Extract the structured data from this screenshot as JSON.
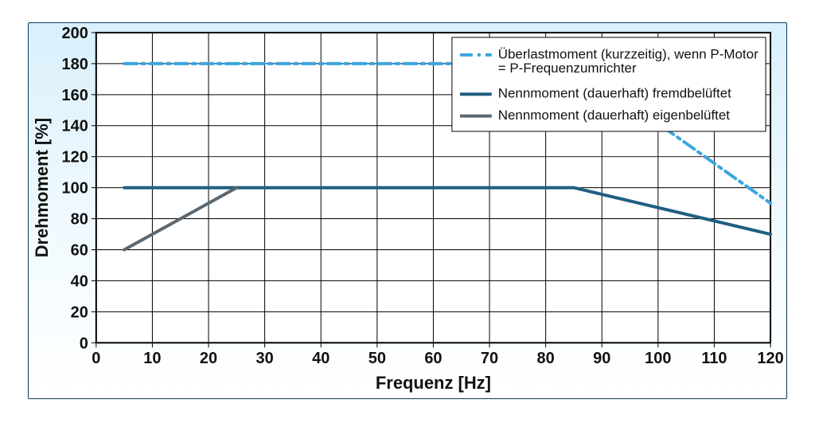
{
  "chart": {
    "type": "line",
    "background_gradient_top": "#d9f0fb",
    "background_gradient_bottom": "#ffffff",
    "border_color": "#0a3a5a",
    "xaxis": {
      "title": "Frequenz [Hz]",
      "min": 0,
      "max": 120,
      "step": 10,
      "title_fontsize": 22,
      "tick_fontsize": 20,
      "grid": true,
      "grid_color": "#000000"
    },
    "yaxis": {
      "title": "Drehmoment [%]",
      "min": 0,
      "max": 200,
      "step": 20,
      "title_fontsize": 22,
      "tick_fontsize": 20,
      "grid": true,
      "grid_color": "#000000"
    },
    "plot_background": "#ffffff",
    "legend": {
      "position": "top-right",
      "box_fill": "#ffffff",
      "box_stroke": "#000000",
      "fontsize": 17,
      "items": [
        {
          "label_line1": "Überlastmoment (kurzzeitig), wenn P-Motor",
          "label_line2": "= P-Frequenzumrichter",
          "color": "#3aa6dd",
          "width": 4,
          "dash": "16 6 4 6"
        },
        {
          "label_line1": "Nennmoment (dauerhaft) fremdbelüftet",
          "label_line2": "",
          "color": "#1f5f82",
          "width": 4,
          "dash": ""
        },
        {
          "label_line1": "Nennmoment (dauerhaft) eigenbelüftet",
          "label_line2": "",
          "color": "#5b6770",
          "width": 4,
          "dash": ""
        }
      ]
    },
    "series": [
      {
        "name": "overload",
        "label": "Überlastmoment (kurzzeitig), wenn P-Motor = P-Frequenzumrichter",
        "color": "#3aa6dd",
        "width": 4,
        "dash": "16 6 4 6",
        "points": [
          [
            5,
            180
          ],
          [
            85,
            180
          ],
          [
            120,
            90
          ]
        ]
      },
      {
        "name": "nominal_forced",
        "label": "Nennmoment (dauerhaft) fremdbelüftet",
        "color": "#1f5f82",
        "width": 4,
        "dash": "",
        "points": [
          [
            5,
            100
          ],
          [
            85,
            100
          ],
          [
            120,
            70
          ]
        ]
      },
      {
        "name": "nominal_self",
        "label": "Nennmoment (dauerhaft) eigenbelüftet",
        "color": "#5b6770",
        "width": 4,
        "dash": "",
        "points": [
          [
            5,
            60
          ],
          [
            25,
            100
          ]
        ]
      }
    ]
  }
}
